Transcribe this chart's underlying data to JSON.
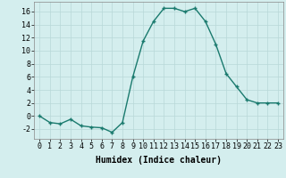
{
  "x": [
    0,
    1,
    2,
    3,
    4,
    5,
    6,
    7,
    8,
    9,
    10,
    11,
    12,
    13,
    14,
    15,
    16,
    17,
    18,
    19,
    20,
    21,
    22,
    23
  ],
  "y": [
    0,
    -1,
    -1.2,
    -0.5,
    -1.5,
    -1.7,
    -1.8,
    -2.5,
    -1,
    6,
    11.5,
    14.5,
    16.5,
    16.5,
    16,
    16.5,
    14.5,
    11,
    6.5,
    4.5,
    2.5,
    2,
    2,
    2
  ],
  "line_color": "#1a7a6e",
  "marker": "+",
  "marker_size": 3,
  "marker_edge_width": 1.0,
  "background_color": "#d4eeee",
  "grid_color": "#b8d8d8",
  "xlabel": "Humidex (Indice chaleur)",
  "xlabel_fontsize": 7,
  "xlim": [
    -0.5,
    23.5
  ],
  "ylim": [
    -3.5,
    17.5
  ],
  "yticks": [
    -2,
    0,
    2,
    4,
    6,
    8,
    10,
    12,
    14,
    16
  ],
  "xticks": [
    0,
    1,
    2,
    3,
    4,
    5,
    6,
    7,
    8,
    9,
    10,
    11,
    12,
    13,
    14,
    15,
    16,
    17,
    18,
    19,
    20,
    21,
    22,
    23
  ],
  "tick_fontsize": 6,
  "line_width": 1.0
}
